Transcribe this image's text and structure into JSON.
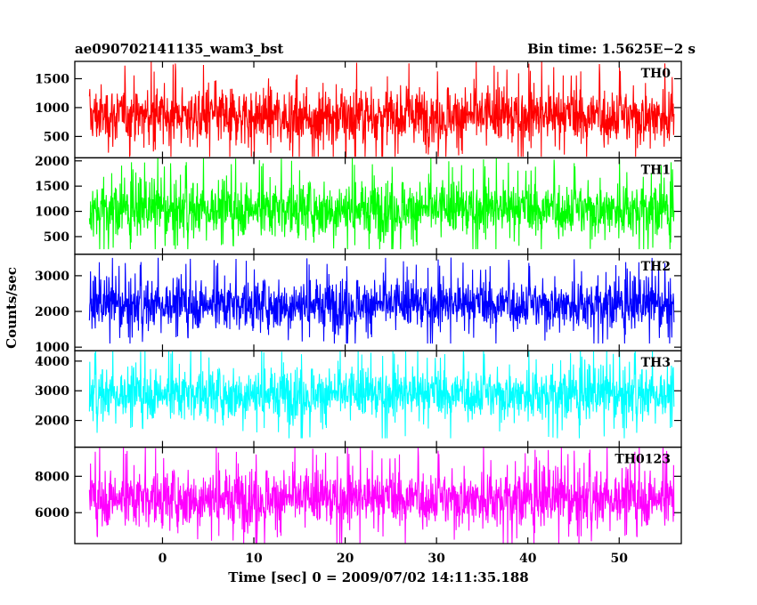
{
  "header": {
    "title": "ae090702141135_wam3_bst",
    "bin_time": "Bin time: 1.5625E−2 s"
  },
  "chart_data": {
    "type": "line",
    "ylabel": "Counts/sec",
    "xlabel": "Time [sec] 0 = 2009/07/02 14:11:35.188",
    "xlim": [
      -9.6,
      56.8
    ],
    "x_ticks": [
      0,
      10,
      20,
      30,
      40,
      50
    ],
    "x_tick_labels": [
      "0",
      "10",
      "20",
      "30",
      "40",
      "50"
    ],
    "data_x_range": [
      -8,
      56
    ],
    "panels": [
      {
        "series": "TH0",
        "color": "#ff0000",
        "ylim": [
          130,
          1800
        ],
        "yticks": [
          500,
          1000,
          1500
        ],
        "ytick_labels": [
          "500",
          "1000",
          "1500"
        ],
        "mean": 860,
        "typical_range": [
          300,
          1450
        ],
        "extreme_range": [
          150,
          1800
        ]
      },
      {
        "series": "TH1",
        "color": "#00ff00",
        "ylim": [
          150,
          2060
        ],
        "yticks": [
          500,
          1000,
          1500,
          2000
        ],
        "ytick_labels": [
          "500",
          "1000",
          "1500",
          "2000"
        ],
        "mean": 1050,
        "typical_range": [
          450,
          1700
        ],
        "extreme_range": [
          250,
          2060
        ]
      },
      {
        "series": "TH2",
        "color": "#0000ff",
        "ylim": [
          900,
          3600
        ],
        "yticks": [
          1000,
          2000,
          3000
        ],
        "ytick_labels": [
          "1000",
          "2000",
          "3000"
        ],
        "mean": 2200,
        "typical_range": [
          1400,
          3000
        ],
        "extreme_range": [
          1100,
          3600
        ]
      },
      {
        "series": "TH3",
        "color": "#00ffff",
        "ylim": [
          1100,
          4350
        ],
        "yticks": [
          2000,
          3000,
          4000
        ],
        "ytick_labels": [
          "2000",
          "3000",
          "4000"
        ],
        "mean": 2900,
        "typical_range": [
          1900,
          3900
        ],
        "extreme_range": [
          1400,
          4350
        ]
      },
      {
        "series": "TH0123",
        "color": "#ff00ff",
        "ylim": [
          4300,
          9600
        ],
        "yticks": [
          6000,
          8000
        ],
        "ytick_labels": [
          "6000",
          "8000"
        ],
        "mean": 6800,
        "typical_range": [
          5000,
          8600
        ],
        "extreme_range": [
          4300,
          9600
        ]
      }
    ]
  }
}
